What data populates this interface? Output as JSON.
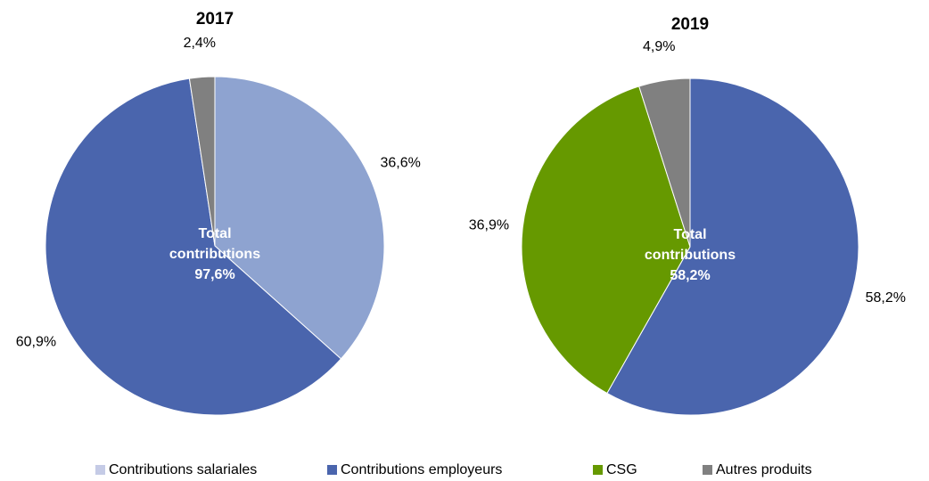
{
  "chart_data": [
    {
      "type": "pie",
      "title": "2017",
      "categories": [
        "Contributions salariales",
        "Contributions employeurs",
        "Autres produits"
      ],
      "values": [
        36.6,
        60.9,
        2.4
      ],
      "value_labels": [
        "36,6%",
        "60,9%",
        "2,4%"
      ],
      "colors": [
        "#8ea3d0",
        "#4a65ad",
        "#808080"
      ],
      "annotation": [
        "Total",
        "contributions",
        "97,6%"
      ]
    },
    {
      "type": "pie",
      "title": "2019",
      "categories": [
        "Contributions employeurs",
        "CSG",
        "Autres produits"
      ],
      "values": [
        58.2,
        36.9,
        4.9
      ],
      "value_labels": [
        "58,2%",
        "36,9%",
        "4,9%"
      ],
      "colors": [
        "#4a65ad",
        "#669900",
        "#808080"
      ],
      "annotation": [
        "Total",
        "contributions",
        "58,2%"
      ]
    }
  ],
  "legend": [
    {
      "name": "Contributions salariales",
      "color": "#c5cbe6"
    },
    {
      "name": "Contributions employeurs",
      "color": "#4a65ad"
    },
    {
      "name": "CSG",
      "color": "#669900"
    },
    {
      "name": "Autres produits",
      "color": "#808080"
    }
  ]
}
